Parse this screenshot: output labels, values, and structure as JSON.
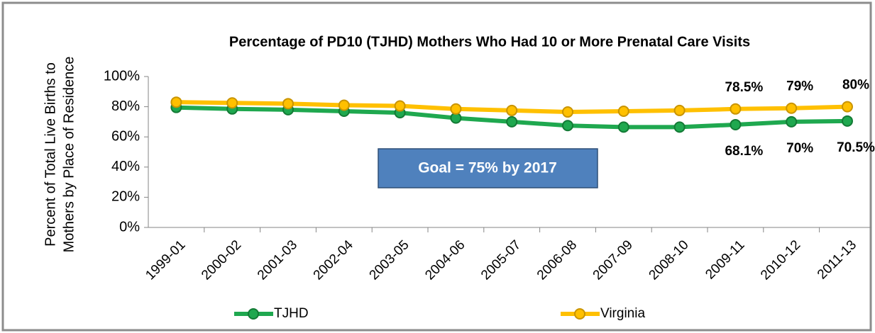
{
  "chart_data": {
    "type": "line",
    "title": "Percentage of PD10 (TJHD) Mothers Who Had 10 or More Prenatal Care Visits",
    "ylabel": [
      "Percent of Total Live Births to",
      "Mothers by Place of Residence"
    ],
    "categories": [
      "1999-01",
      "2000-02",
      "2001-03",
      "2002-04",
      "2003-05",
      "2004-06",
      "2005-07",
      "2006-08",
      "2007-09",
      "2008-10",
      "2009-11",
      "2010-12",
      "2011-13"
    ],
    "series": [
      {
        "name": "TJHD",
        "color": "#1fa84f",
        "marker_color": "#137a35",
        "values": [
          79.5,
          78.5,
          78,
          77,
          76,
          72.5,
          70,
          67.5,
          66.5,
          66.5,
          68.1,
          70,
          70.5
        ],
        "value_labels": [
          null,
          null,
          null,
          null,
          null,
          null,
          null,
          null,
          null,
          null,
          "68.1%",
          "70%",
          "70.5%"
        ]
      },
      {
        "name": "Virginia",
        "color": "#ffc000",
        "marker_color": "#c99400",
        "values": [
          83,
          82.5,
          82,
          81,
          80.5,
          78.5,
          77.5,
          76.5,
          77,
          77.5,
          78.5,
          79,
          80
        ],
        "value_labels": [
          null,
          null,
          null,
          null,
          null,
          null,
          null,
          null,
          null,
          null,
          "78.5%",
          "79%",
          "80%"
        ]
      }
    ],
    "ylim": [
      0,
      100
    ],
    "yticks": [
      {
        "value": 0,
        "label": "0%"
      },
      {
        "value": 20,
        "label": "20%"
      },
      {
        "value": 40,
        "label": "40%"
      },
      {
        "value": 60,
        "label": "60%"
      },
      {
        "value": 80,
        "label": "80%"
      },
      {
        "value": 100,
        "label": "100%"
      }
    ],
    "grid": false,
    "legend": "bottom",
    "annotation": "Goal = 75% by 2017"
  }
}
